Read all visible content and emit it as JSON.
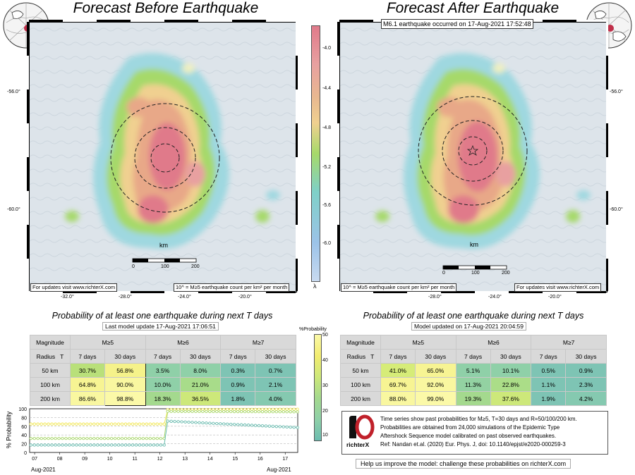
{
  "left_panel": {
    "title": "Forecast Before Earthquake",
    "footer_left": "For updates visit www.richterX.com",
    "footer_right": "10^ = M≥5 earthquake count per km² per month",
    "table_title": "Probability of at least one earthquake during next T days",
    "table_subtitle": "Last model update 17-Aug-2021 17:06:51"
  },
  "right_panel": {
    "title": "Forecast After Earthquake",
    "event_note": "M6.1 earthquake occurred on 17-Aug-2021 17:52:48",
    "footer_left": "10^ = M≥5 earthquake count per km² per month",
    "footer_right": "For updates visit www.richterX.com",
    "table_title": "Probability of at least one earthquake during next T days",
    "table_subtitle": "Model updated on 17-Aug-2021 20:04:59"
  },
  "map_axes": {
    "x_ticks": [
      "-32.0°",
      "-28.0°",
      "-24.0°",
      "-20.0°"
    ],
    "y_ticks": [
      "-56.0°",
      "-60.0°"
    ],
    "scale_label": "km",
    "scale_ticks": [
      "0",
      "100",
      "200"
    ]
  },
  "colorbar": {
    "ticks": [
      "-4.0",
      "-4.4",
      "-4.8",
      "-5.2",
      "-5.6",
      "-6.0"
    ],
    "symbol": "λ",
    "colors": [
      "#e07a8a",
      "#e8a888",
      "#f0d090",
      "#a6d96a",
      "#7fd0c8",
      "#9cc3e8"
    ]
  },
  "prob_colorbar": {
    "title": "%Probability",
    "ticks": [
      "50",
      "40",
      "30",
      "20",
      "10"
    ]
  },
  "table_headers": {
    "magnitude": "Magnitude",
    "radius": "Radius",
    "t": "T",
    "mags": [
      "M≥5",
      "M≥6",
      "M≥7"
    ],
    "periods": [
      "7 days",
      "30 days",
      "7 days",
      "30 days",
      "7 days",
      "30 days"
    ]
  },
  "left_table": {
    "rows": [
      {
        "radius": "50 km",
        "values": [
          "30.7%",
          "56.8%",
          "3.5%",
          "8.0%",
          "0.3%",
          "0.7%"
        ],
        "colors": [
          "#b9e07a",
          "#f5f28a",
          "#8fd0a8",
          "#8fd0a8",
          "#7ec4b4",
          "#7ec4b4"
        ]
      },
      {
        "radius": "100 km",
        "values": [
          "64.8%",
          "90.0%",
          "10.0%",
          "21.0%",
          "0.9%",
          "2.1%"
        ],
        "colors": [
          "#f7f493",
          "#f9f7a0",
          "#8fd0a8",
          "#a8dc8a",
          "#7ec4b4",
          "#7ec4b4"
        ]
      },
      {
        "radius": "200 km",
        "values": [
          "86.6%",
          "98.8%",
          "18.3%",
          "36.5%",
          "1.8%",
          "4.0%"
        ],
        "colors": [
          "#f9f7a0",
          "#fbf9a8",
          "#a4d98e",
          "#cde87a",
          "#7ec4b4",
          "#85c9b0"
        ]
      }
    ]
  },
  "right_table": {
    "rows": [
      {
        "radius": "50 km",
        "values": [
          "41.0%",
          "65.0%",
          "5.1%",
          "10.1%",
          "0.5%",
          "0.9%"
        ],
        "colors": [
          "#d6ec78",
          "#f7f493",
          "#8fd0a8",
          "#8fd0a8",
          "#7ec4b4",
          "#7ec4b4"
        ]
      },
      {
        "radius": "100 km",
        "values": [
          "69.7%",
          "92.0%",
          "11.3%",
          "22.8%",
          "1.1%",
          "2.3%"
        ],
        "colors": [
          "#f7f493",
          "#f9f7a0",
          "#93d2a2",
          "#abdd88",
          "#7ec4b4",
          "#7ec4b4"
        ]
      },
      {
        "radius": "200 km",
        "values": [
          "88.0%",
          "99.0%",
          "19.3%",
          "37.6%",
          "1.9%",
          "4.2%"
        ],
        "colors": [
          "#f9f7a0",
          "#fbf9a8",
          "#a4d98e",
          "#cde87a",
          "#7ec4b4",
          "#85c9b0"
        ]
      }
    ]
  },
  "info_box": {
    "logo_text": "richterX",
    "lines": [
      "Time series show past probabilities for M≥5, T=30 days and R=50/100/200 km.",
      "Probabilities are obtained from 24,000 simulations of the Epidemic Type",
      "Aftershock Sequence model calibrated on past observed earthquakes.",
      "Ref: Nandan et.al. (2020) Eur. Phys. J, doi: 10.1140/epjst/e2020-000259-3"
    ],
    "help": "Help us improve the model: challenge these probabilities on richterX.com"
  },
  "chart_data": {
    "type": "line",
    "ylabel": "% Probability",
    "ylim": [
      0,
      100
    ],
    "yticks": [
      0,
      20,
      40,
      60,
      80,
      100
    ],
    "xticks": [
      "07",
      "08",
      "09",
      "10",
      "11",
      "12",
      "13",
      "14",
      "15",
      "16",
      "17"
    ],
    "x_range": [
      6.8,
      17.5
    ],
    "x_start_label": "Aug-2021",
    "x_end_label": "Aug-2021",
    "event_day": 12.2,
    "series": [
      {
        "color": "#f2e85a",
        "before": 65,
        "after_start": 98,
        "after_end": 99
      },
      {
        "color": "#a8d66a",
        "before": 32,
        "after_start": 94,
        "after_end": 93
      },
      {
        "color": "#6bbcb0",
        "before": 17,
        "after_start": 72,
        "after_end": 57
      }
    ]
  }
}
